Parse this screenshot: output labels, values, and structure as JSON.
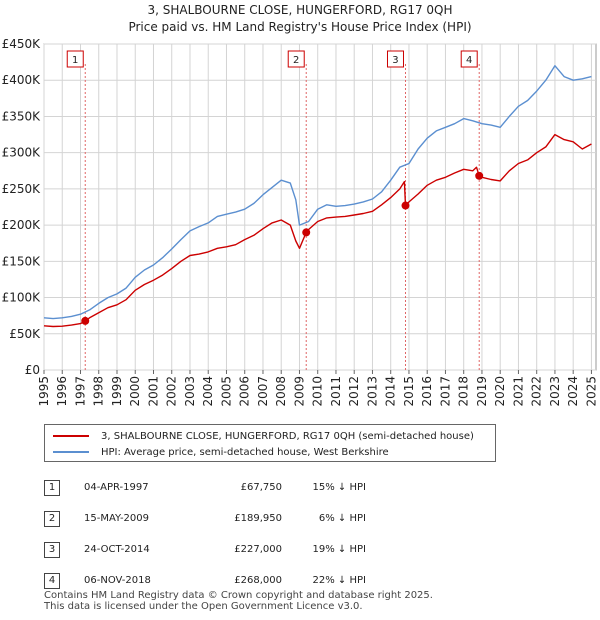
{
  "chart_data": {
    "type": "line",
    "title": "3, SHALBOURNE CLOSE, HUNGERFORD, RG17 0QH",
    "subtitle": "Price paid vs. HM Land Registry's House Price Index (HPI)",
    "xlim": [
      1995,
      2025.25
    ],
    "ylim": [
      0,
      450000
    ],
    "x_ticks": [
      1995,
      1996,
      1997,
      1998,
      1999,
      2000,
      2001,
      2002,
      2003,
      2004,
      2005,
      2006,
      2007,
      2008,
      2009,
      2010,
      2011,
      2012,
      2013,
      2014,
      2015,
      2016,
      2017,
      2018,
      2019,
      2020,
      2021,
      2022,
      2023,
      2024,
      2025
    ],
    "y_ticks": [
      {
        "value": 0,
        "label": "£0"
      },
      {
        "value": 50000,
        "label": "£50K"
      },
      {
        "value": 100000,
        "label": "£100K"
      },
      {
        "value": 150000,
        "label": "£150K"
      },
      {
        "value": 200000,
        "label": "£200K"
      },
      {
        "value": 250000,
        "label": "£250K"
      },
      {
        "value": 300000,
        "label": "£300K"
      },
      {
        "value": 350000,
        "label": "£350K"
      },
      {
        "value": 400000,
        "label": "£400K"
      },
      {
        "value": 450000,
        "label": "£450K"
      }
    ],
    "grid": true,
    "series": [
      {
        "name": "3, SHALBOURNE CLOSE, HUNGERFORD, RG17 0QH (semi-detached house)",
        "color": "#cc0000",
        "x": [
          1995.0,
          1995.5,
          1996.0,
          1996.5,
          1997.0,
          1997.26,
          1997.5,
          1998.0,
          1998.5,
          1999.0,
          1999.5,
          2000.0,
          2000.5,
          2001.0,
          2001.5,
          2002.0,
          2002.5,
          2003.0,
          2003.5,
          2004.0,
          2004.5,
          2005.0,
          2005.5,
          2006.0,
          2006.5,
          2007.0,
          2007.5,
          2008.0,
          2008.5,
          2008.8,
          2009.0,
          2009.37,
          2009.5,
          2010.0,
          2010.5,
          2011.0,
          2011.5,
          2012.0,
          2012.5,
          2013.0,
          2013.5,
          2014.0,
          2014.5,
          2014.75,
          2014.81,
          2015.0,
          2015.5,
          2016.0,
          2016.5,
          2017.0,
          2017.5,
          2018.0,
          2018.5,
          2018.7,
          2018.85,
          2019.0,
          2019.5,
          2020.0,
          2020.5,
          2021.0,
          2021.5,
          2022.0,
          2022.5,
          2023.0,
          2023.5,
          2024.0,
          2024.5,
          2025.0
        ],
        "y": [
          61000,
          60000,
          60500,
          62000,
          64000,
          67750,
          72000,
          79000,
          86000,
          90000,
          97000,
          110000,
          118000,
          124000,
          131000,
          140000,
          150000,
          158000,
          160000,
          163000,
          168000,
          170000,
          173000,
          180000,
          186000,
          195000,
          203000,
          207000,
          200000,
          178000,
          168000,
          189950,
          194000,
          205000,
          210000,
          211000,
          212000,
          214000,
          216000,
          219000,
          228000,
          238000,
          250000,
          260000,
          227000,
          232000,
          243000,
          255000,
          262000,
          266000,
          272000,
          277000,
          275000,
          280000,
          268000,
          266000,
          263000,
          261000,
          275000,
          285000,
          290000,
          300000,
          308000,
          325000,
          318000,
          315000,
          305000,
          312000
        ]
      },
      {
        "name": "HPI: Average price, semi-detached house, West Berkshire",
        "color": "#5b8fd0",
        "x": [
          1995.0,
          1995.5,
          1996.0,
          1996.5,
          1997.0,
          1997.5,
          1998.0,
          1998.5,
          1999.0,
          1999.5,
          2000.0,
          2000.5,
          2001.0,
          2001.5,
          2002.0,
          2002.5,
          2003.0,
          2003.5,
          2004.0,
          2004.5,
          2005.0,
          2005.5,
          2006.0,
          2006.5,
          2007.0,
          2007.5,
          2008.0,
          2008.5,
          2008.8,
          2009.0,
          2009.5,
          2010.0,
          2010.5,
          2011.0,
          2011.5,
          2012.0,
          2012.5,
          2013.0,
          2013.5,
          2014.0,
          2014.5,
          2015.0,
          2015.5,
          2016.0,
          2016.5,
          2017.0,
          2017.5,
          2018.0,
          2018.5,
          2019.0,
          2019.5,
          2020.0,
          2020.5,
          2021.0,
          2021.5,
          2022.0,
          2022.5,
          2023.0,
          2023.5,
          2024.0,
          2024.5,
          2025.0
        ],
        "y": [
          72000,
          71000,
          72000,
          74000,
          77000,
          83000,
          92000,
          100000,
          105000,
          113000,
          128000,
          138000,
          145000,
          155000,
          167000,
          180000,
          192000,
          198000,
          203000,
          212000,
          215000,
          218000,
          222000,
          230000,
          242000,
          252000,
          262000,
          258000,
          235000,
          200000,
          205000,
          222000,
          228000,
          226000,
          227000,
          229000,
          232000,
          236000,
          246000,
          262000,
          280000,
          285000,
          305000,
          320000,
          330000,
          335000,
          340000,
          347000,
          344000,
          340000,
          338000,
          335000,
          350000,
          364000,
          372000,
          385000,
          400000,
          420000,
          405000,
          400000,
          402000,
          405000
        ]
      }
    ],
    "sale_markers": [
      {
        "label": "1",
        "x": 1997.26,
        "y": 67750
      },
      {
        "label": "2",
        "x": 2009.37,
        "y": 189950
      },
      {
        "label": "3",
        "x": 2014.81,
        "y": 227000
      },
      {
        "label": "4",
        "x": 2018.85,
        "y": 268000
      }
    ]
  },
  "legend": {
    "property_label": "3, SHALBOURNE CLOSE, HUNGERFORD, RG17 0QH (semi-detached house)",
    "hpi_label": "HPI: Average price, semi-detached house, West Berkshire"
  },
  "sales_table": [
    {
      "num": "1",
      "date": "04-APR-1997",
      "price": "£67,750",
      "hpi": "15% ↓ HPI"
    },
    {
      "num": "2",
      "date": "15-MAY-2009",
      "price": "£189,950",
      "hpi": "6% ↓ HPI"
    },
    {
      "num": "3",
      "date": "24-OCT-2014",
      "price": "£227,000",
      "hpi": "19% ↓ HPI"
    },
    {
      "num": "4",
      "date": "06-NOV-2018",
      "price": "£268,000",
      "hpi": "22% ↓ HPI"
    }
  ],
  "footer": {
    "line1": "Contains HM Land Registry data © Crown copyright and database right 2025.",
    "line2": "This data is licensed under the Open Government Licence v3.0."
  }
}
